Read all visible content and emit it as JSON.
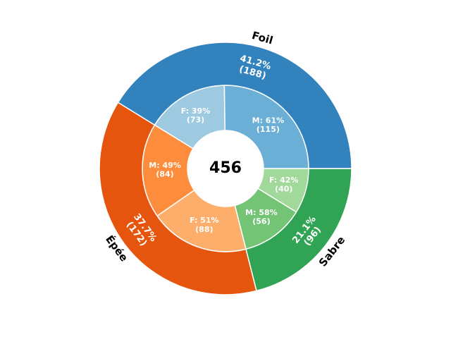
{
  "chart_data": {
    "type": "sunburst",
    "total": 456,
    "categories": [
      "Foil",
      "Épée",
      "Sabre"
    ],
    "values": [
      188,
      172,
      96
    ],
    "value_labels": [
      "41.2%\n(188)",
      "37.7%\n(172)",
      "21.1%\n(96)"
    ],
    "colors": [
      "#3182bd",
      "#e6550d",
      "#31a354"
    ],
    "inner": {
      "values": [
        115,
        73,
        84,
        88,
        56,
        40
      ],
      "value_labels": [
        "M: 61%\n(115)",
        "F: 39%\n(73)",
        "M: 49%\n(84)",
        "F: 51%\n(88)",
        "M: 58%\n(56)",
        "F: 42%\n(40)"
      ],
      "colors": [
        "#6baed6",
        "#9ecae1",
        "#fd8d3c",
        "#fdae6b",
        "#74c476",
        "#a1d99b"
      ]
    }
  }
}
